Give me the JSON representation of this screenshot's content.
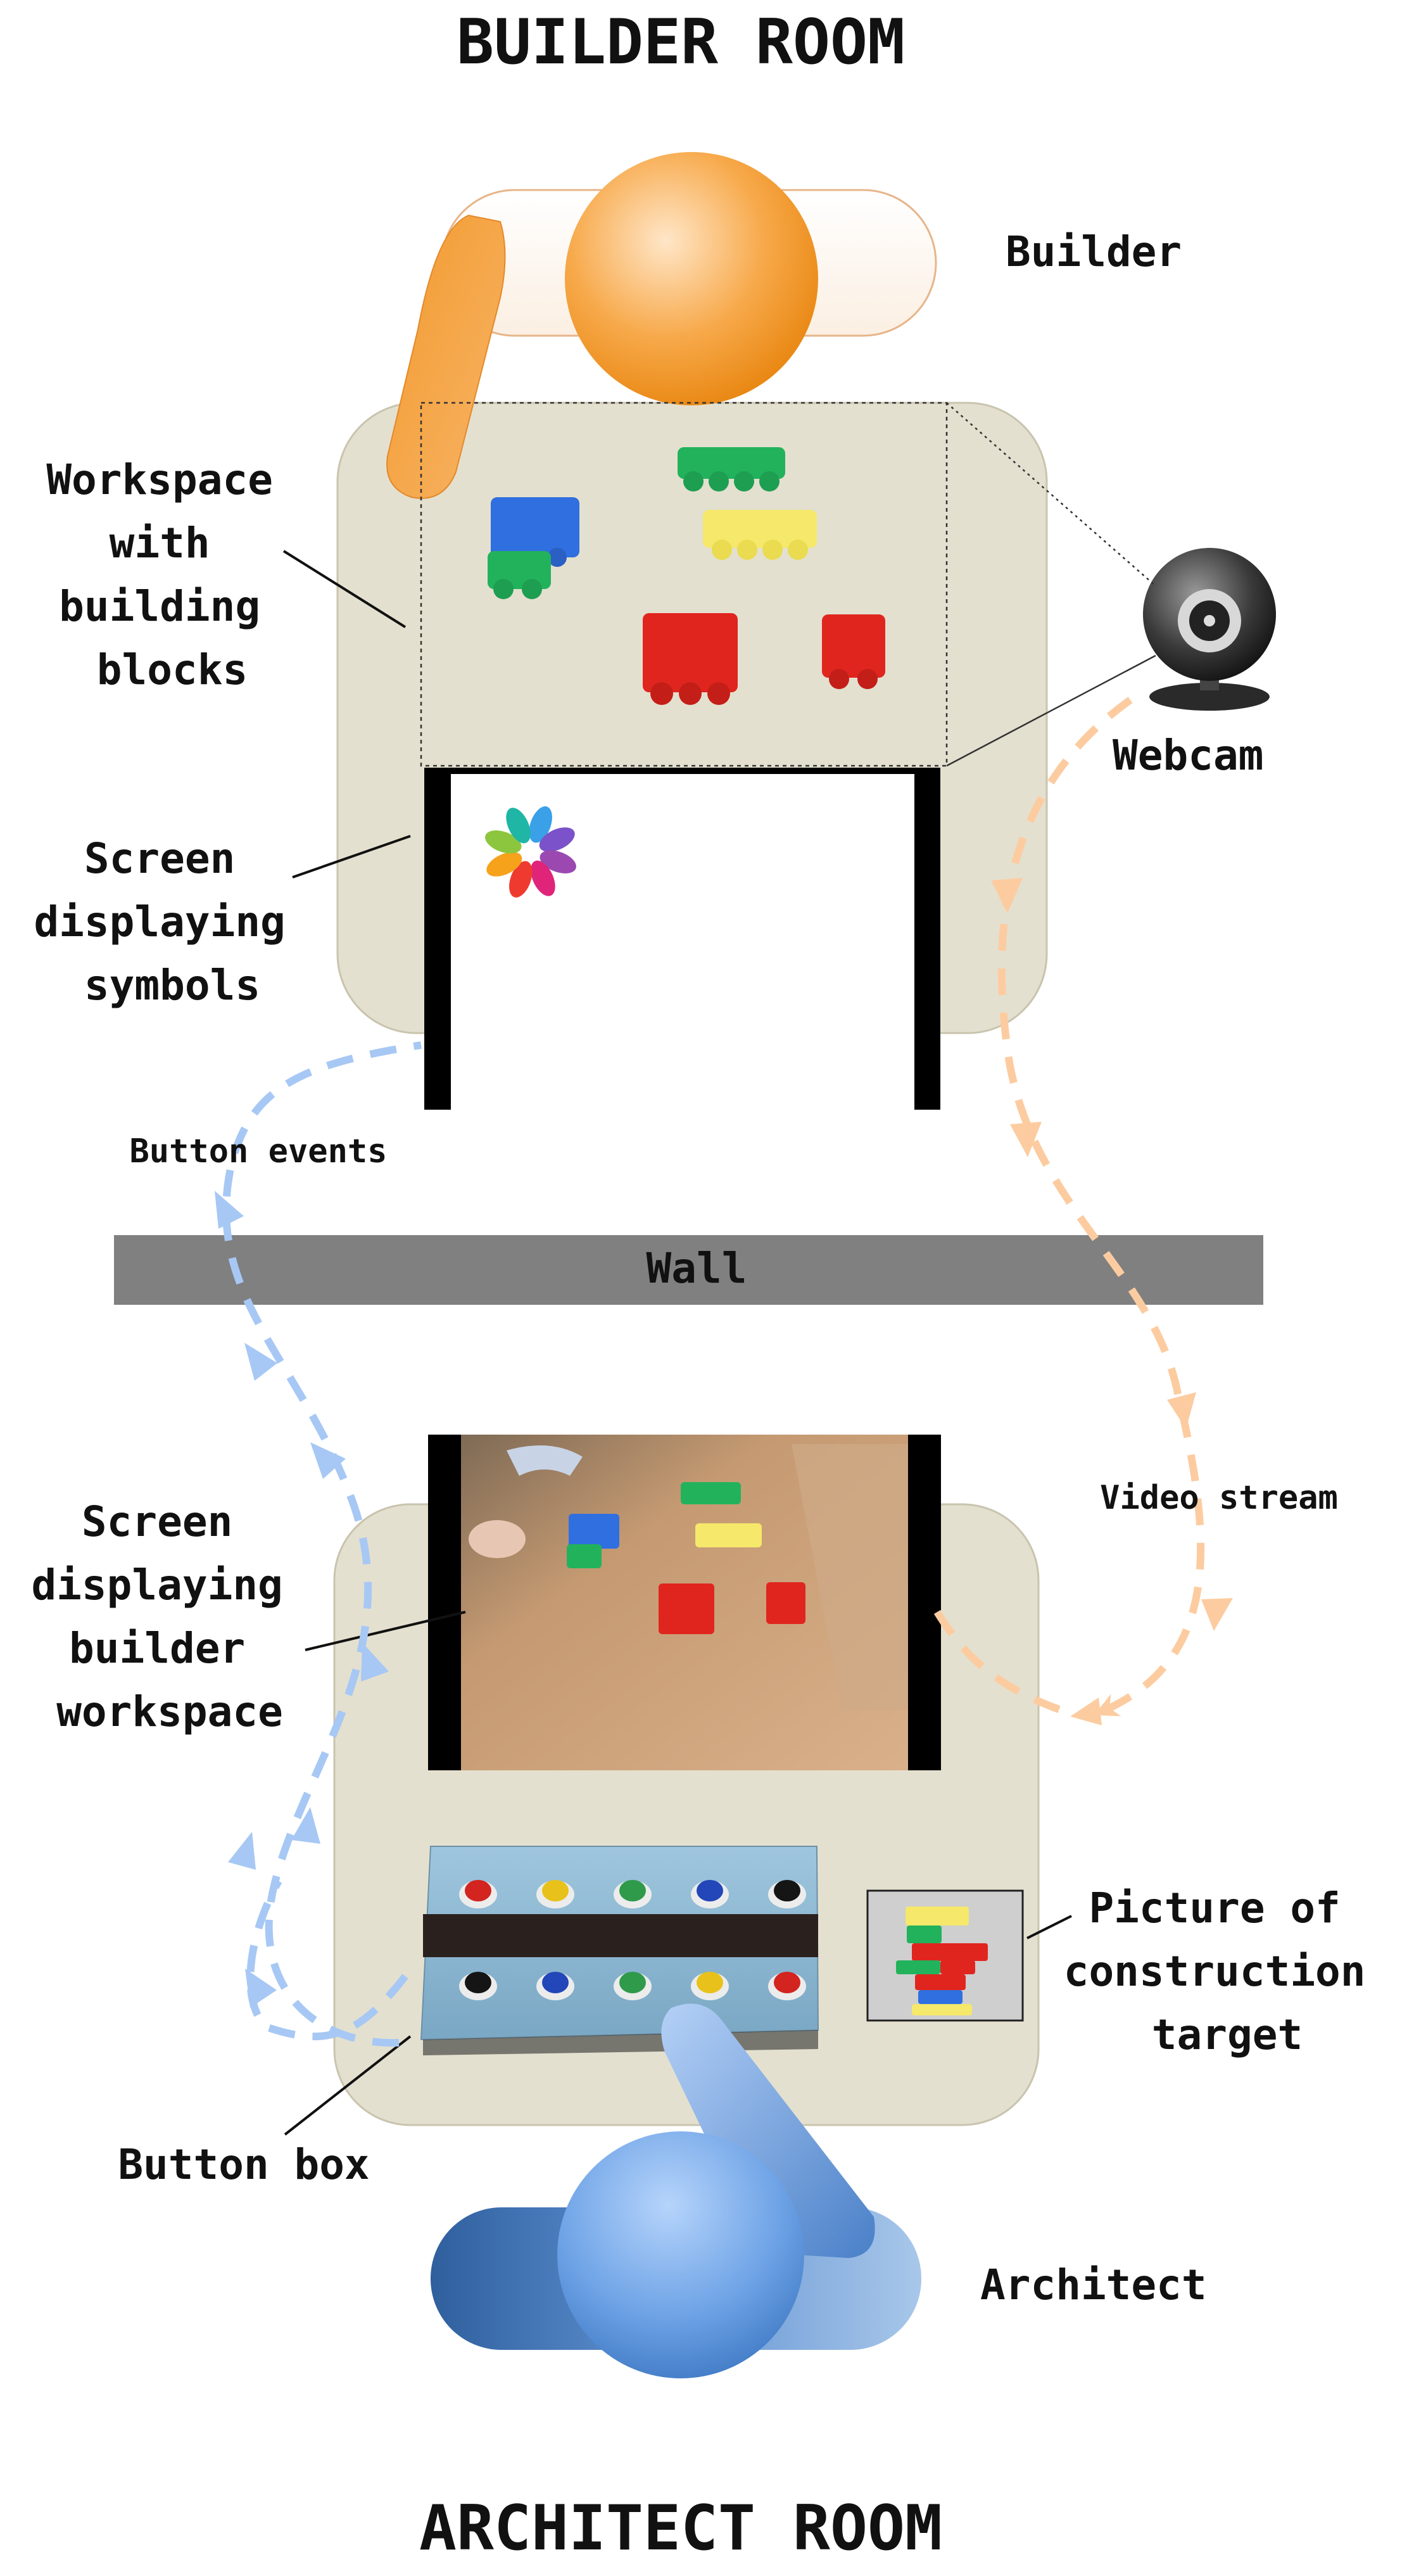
{
  "titles": {
    "builder_room": "BUILDER ROOM",
    "architect_room": "ARCHITECT ROOM"
  },
  "labels": {
    "builder": "Builder",
    "architect": "Architect",
    "webcam": "Webcam",
    "wall": "Wall",
    "button_events": "Button events",
    "video_stream": "Video stream",
    "button_box": "Button box",
    "workspace": [
      "Workspace",
      "with",
      "building",
      "blocks"
    ],
    "screen_symbols": [
      "Screen",
      "displaying",
      "symbols"
    ],
    "screen_workspace": [
      "Screen",
      "displaying",
      "builder",
      "workspace"
    ],
    "picture_target": [
      "Picture of",
      "construction",
      "target"
    ]
  },
  "colors": {
    "table": "#e4e0cf",
    "wall": "#808080",
    "builder_orange": "#f09a32",
    "architect_blue": "#5b8fcf",
    "arrow_orange": "#fccca0",
    "arrow_blue": "#a7c8f4",
    "block_red": "#e0251f",
    "block_blue": "#2f6fe0",
    "block_green": "#22b25c",
    "block_yellow": "#f5e86a"
  },
  "buttons": {
    "top_row": [
      "red",
      "yellow",
      "green",
      "blue",
      "black"
    ],
    "bottom_row": [
      "black",
      "blue",
      "green",
      "yellow",
      "red"
    ]
  }
}
